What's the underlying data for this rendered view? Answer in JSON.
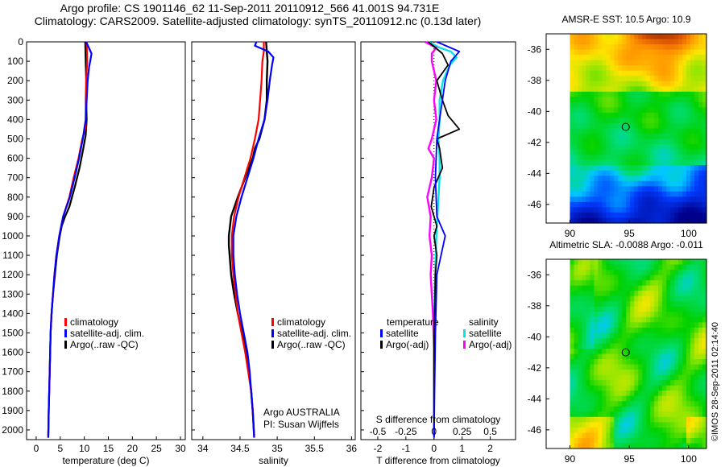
{
  "title_line1": "Argo profile: CS 1901146_62 11-Sep-2011 20110912_566 41.001S 94.731E",
  "title_line2": "Climatology: CARS2009. Satellite-adjusted climatology: synTS_20110912.nc (0.13d later)",
  "side_stamp": "©IMOS 28-Sep-2011 02:14:40",
  "chart_data": [
    {
      "type": "line",
      "panel": "temperature",
      "xlabel": "temperature (deg C)",
      "xlim": [
        -2,
        31
      ],
      "xticks": [
        "0",
        "5",
        "10",
        "15",
        "20",
        "25",
        "30"
      ],
      "ylim": [
        0,
        2050
      ],
      "yticks": [
        "0",
        "100",
        "200",
        "300",
        "400",
        "500",
        "600",
        "700",
        "800",
        "900",
        "1000",
        "1100",
        "1200",
        "1300",
        "1400",
        "1500",
        "1600",
        "1700",
        "1800",
        "1900",
        "2000"
      ],
      "legend": [
        "climatology",
        "satellite-adj. clim.",
        "Argo(..raw -QC)"
      ],
      "colors": {
        "climatology": "#ff0000",
        "satellite": "#0000ff",
        "argo": "#000000"
      },
      "series": [
        {
          "name": "climatology",
          "depth": [
            0,
            100,
            200,
            300,
            400,
            450,
            500,
            600,
            700,
            800,
            900,
            1000,
            1100,
            1200,
            1300,
            1400,
            1500,
            1700,
            1900,
            2040
          ],
          "values": [
            10.5,
            10.6,
            10.4,
            10.3,
            10.3,
            10.2,
            9.6,
            8.8,
            7.8,
            6.9,
            5.6,
            4.8,
            4.2,
            3.8,
            3.5,
            3.2,
            3.0,
            2.8,
            2.6,
            2.5
          ]
        },
        {
          "name": "satellite-adj. clim.",
          "depth": [
            0,
            60,
            90,
            130,
            200,
            300,
            400,
            500,
            600,
            700,
            800,
            900,
            1000,
            1100,
            1200,
            1300,
            1400,
            1500,
            1700,
            1900,
            2040
          ],
          "values": [
            10.4,
            11.5,
            11.3,
            11.0,
            10.7,
            10.5,
            10.3,
            9.7,
            8.9,
            8.0,
            7.0,
            5.6,
            4.8,
            4.2,
            3.8,
            3.5,
            3.2,
            3.0,
            2.8,
            2.6,
            2.5
          ]
        },
        {
          "name": "Argo(..raw -QC)",
          "depth": [
            0,
            100,
            200,
            300,
            400,
            480,
            550,
            650,
            750,
            850,
            900,
            950,
            1000,
            1100,
            1200,
            1300,
            1400,
            1500,
            1700,
            1900,
            2030
          ],
          "values": [
            10.2,
            10.3,
            10.4,
            10.4,
            10.5,
            10.3,
            9.8,
            9.0,
            8.0,
            6.9,
            6.0,
            5.3,
            4.9,
            4.3,
            3.9,
            3.5,
            3.2,
            3.0,
            2.8,
            2.6,
            2.5
          ]
        }
      ]
    },
    {
      "type": "line",
      "panel": "salinity",
      "xlabel": "salinity",
      "xlim": [
        33.85,
        36.05
      ],
      "xticks": [
        "34",
        "34.5",
        "35",
        "35.5",
        "36"
      ],
      "legend": [
        "climatology",
        "satellite-adj. clim.",
        "Argo(..raw -QC)"
      ],
      "annotation": [
        "Argo AUSTRALIA",
        "PI: Susan Wijffels"
      ],
      "series": [
        {
          "name": "climatology",
          "depth": [
            0,
            50,
            100,
            200,
            300,
            400,
            500,
            600,
            700,
            800,
            900,
            1000,
            1100,
            1200,
            1300,
            1400,
            1500,
            1600,
            1700,
            1800,
            1900,
            2040
          ],
          "values": [
            34.82,
            34.82,
            34.8,
            34.79,
            34.77,
            34.75,
            34.7,
            34.64,
            34.56,
            34.48,
            34.42,
            34.39,
            34.39,
            34.41,
            34.44,
            34.47,
            34.52,
            34.57,
            34.61,
            34.65,
            34.67,
            34.69
          ]
        },
        {
          "name": "satellite-adj. clim.",
          "depth": [
            0,
            20,
            50,
            80,
            120,
            200,
            300,
            400,
            500,
            600,
            700,
            800,
            900,
            1000,
            1100,
            1200,
            1300,
            1400,
            1500,
            1600,
            1700,
            1800,
            1900,
            2040
          ],
          "values": [
            34.72,
            34.7,
            34.88,
            34.95,
            34.93,
            34.9,
            34.87,
            34.83,
            34.75,
            34.68,
            34.6,
            34.52,
            34.45,
            34.41,
            34.41,
            34.43,
            34.46,
            34.5,
            34.55,
            34.6,
            34.63,
            34.65,
            34.67,
            34.69
          ]
        },
        {
          "name": "Argo(..raw -QC)",
          "depth": [
            0,
            100,
            200,
            300,
            400,
            500,
            550,
            600,
            700,
            800,
            900,
            1000,
            1050,
            1100,
            1200,
            1300,
            1400,
            1500,
            1600,
            1700,
            1800,
            1900,
            2030
          ],
          "values": [
            34.85,
            34.87,
            34.86,
            34.86,
            34.83,
            34.76,
            34.7,
            34.67,
            34.57,
            34.47,
            34.38,
            34.35,
            34.35,
            34.36,
            34.38,
            34.42,
            34.47,
            34.53,
            34.58,
            34.62,
            34.65,
            34.67,
            34.69
          ]
        }
      ]
    },
    {
      "type": "line",
      "panel": "differences",
      "xlabel": "T difference from climatology",
      "xlim": [
        -2.6,
        2.9
      ],
      "xticks": [
        "-2",
        "-1",
        "0",
        "1",
        "2"
      ],
      "top_label": "S difference from climatology",
      "top_ticks": [
        "-0.5",
        "-0.25",
        "0",
        "0.25",
        "0.5"
      ],
      "legend_temperature": [
        "temperature",
        "satellite",
        "Argo(-adj)"
      ],
      "legend_salinity": [
        "salinity",
        "satellite",
        "Argo(-adj)"
      ],
      "colors": {
        "T_satellite": "#0000ff",
        "T_argo": "#000000",
        "S_satellite": "#00e5e5",
        "S_argo": "#ff00ff"
      },
      "series": [
        {
          "name": "T satellite",
          "depth": [
            0,
            50,
            100,
            200,
            300,
            400,
            500,
            700,
            900,
            1000,
            1200,
            1500,
            1800,
            2040
          ],
          "values": [
            0.1,
            0.9,
            0.6,
            0.4,
            0.3,
            0.2,
            0.1,
            0.05,
            0.1,
            0.4,
            0.1,
            0.05,
            0.02,
            0.0
          ]
        },
        {
          "name": "T Argo(-adj)",
          "depth": [
            0,
            60,
            120,
            200,
            300,
            380,
            450,
            500,
            550,
            650,
            750,
            850,
            950,
            1000,
            1100,
            1200,
            1400,
            1600,
            1800,
            2030
          ],
          "values": [
            -0.2,
            0.3,
            0.5,
            0.1,
            0.3,
            0.5,
            0.9,
            0.1,
            0.2,
            0.3,
            0.0,
            -0.1,
            0.1,
            0.0,
            0.1,
            0.05,
            0.02,
            0.0,
            0.0,
            0.0
          ]
        },
        {
          "name": "S satellite",
          "depth": [
            0,
            30,
            50,
            80,
            120,
            200,
            300,
            400,
            500,
            600,
            700,
            800,
            900,
            1000,
            1200,
            1500,
            1800,
            2040
          ],
          "values": [
            -0.05,
            0.05,
            0.15,
            0.2,
            0.14,
            0.08,
            0.05,
            0.05,
            0.04,
            0.05,
            0.05,
            0.04,
            0.03,
            0.02,
            0.01,
            0.0,
            0.0,
            0.0
          ]
        },
        {
          "name": "S Argo(-adj)",
          "depth": [
            0,
            30,
            60,
            100,
            150,
            200,
            300,
            400,
            500,
            550,
            600,
            700,
            800,
            900,
            1000,
            1100,
            1200,
            1400,
            1600,
            1800,
            2030
          ],
          "values": [
            -0.08,
            0.02,
            -0.02,
            -0.02,
            0.0,
            0.02,
            0.0,
            0.02,
            -0.02,
            -0.05,
            0.0,
            -0.02,
            -0.06,
            -0.03,
            -0.04,
            -0.02,
            -0.03,
            -0.01,
            0.0,
            0.0,
            0.0
          ]
        }
      ]
    },
    {
      "type": "heatmap",
      "panel": "sst-map",
      "title": "AMSR-E SST: 10.5 Argo: 10.9",
      "xlim": [
        88,
        101.5
      ],
      "ylim": [
        -47.2,
        -35
      ],
      "xticks": [
        "90",
        "95",
        "100"
      ],
      "yticks": [
        "-36",
        "-38",
        "-40",
        "-42",
        "-44",
        "-46"
      ],
      "marker": {
        "lon": 94.7,
        "lat": -41.0
      }
    },
    {
      "type": "heatmap",
      "panel": "sla-map",
      "title": "Altimetric SLA: -0.0088 Argo: -0.011",
      "xlim": [
        88,
        101.5
      ],
      "ylim": [
        -47.2,
        -35
      ],
      "xticks": [
        "90",
        "95",
        "100"
      ],
      "yticks": [
        "-36",
        "-38",
        "-40",
        "-42",
        "-44",
        "-46"
      ],
      "marker": {
        "lon": 94.7,
        "lat": -41.0
      }
    }
  ]
}
